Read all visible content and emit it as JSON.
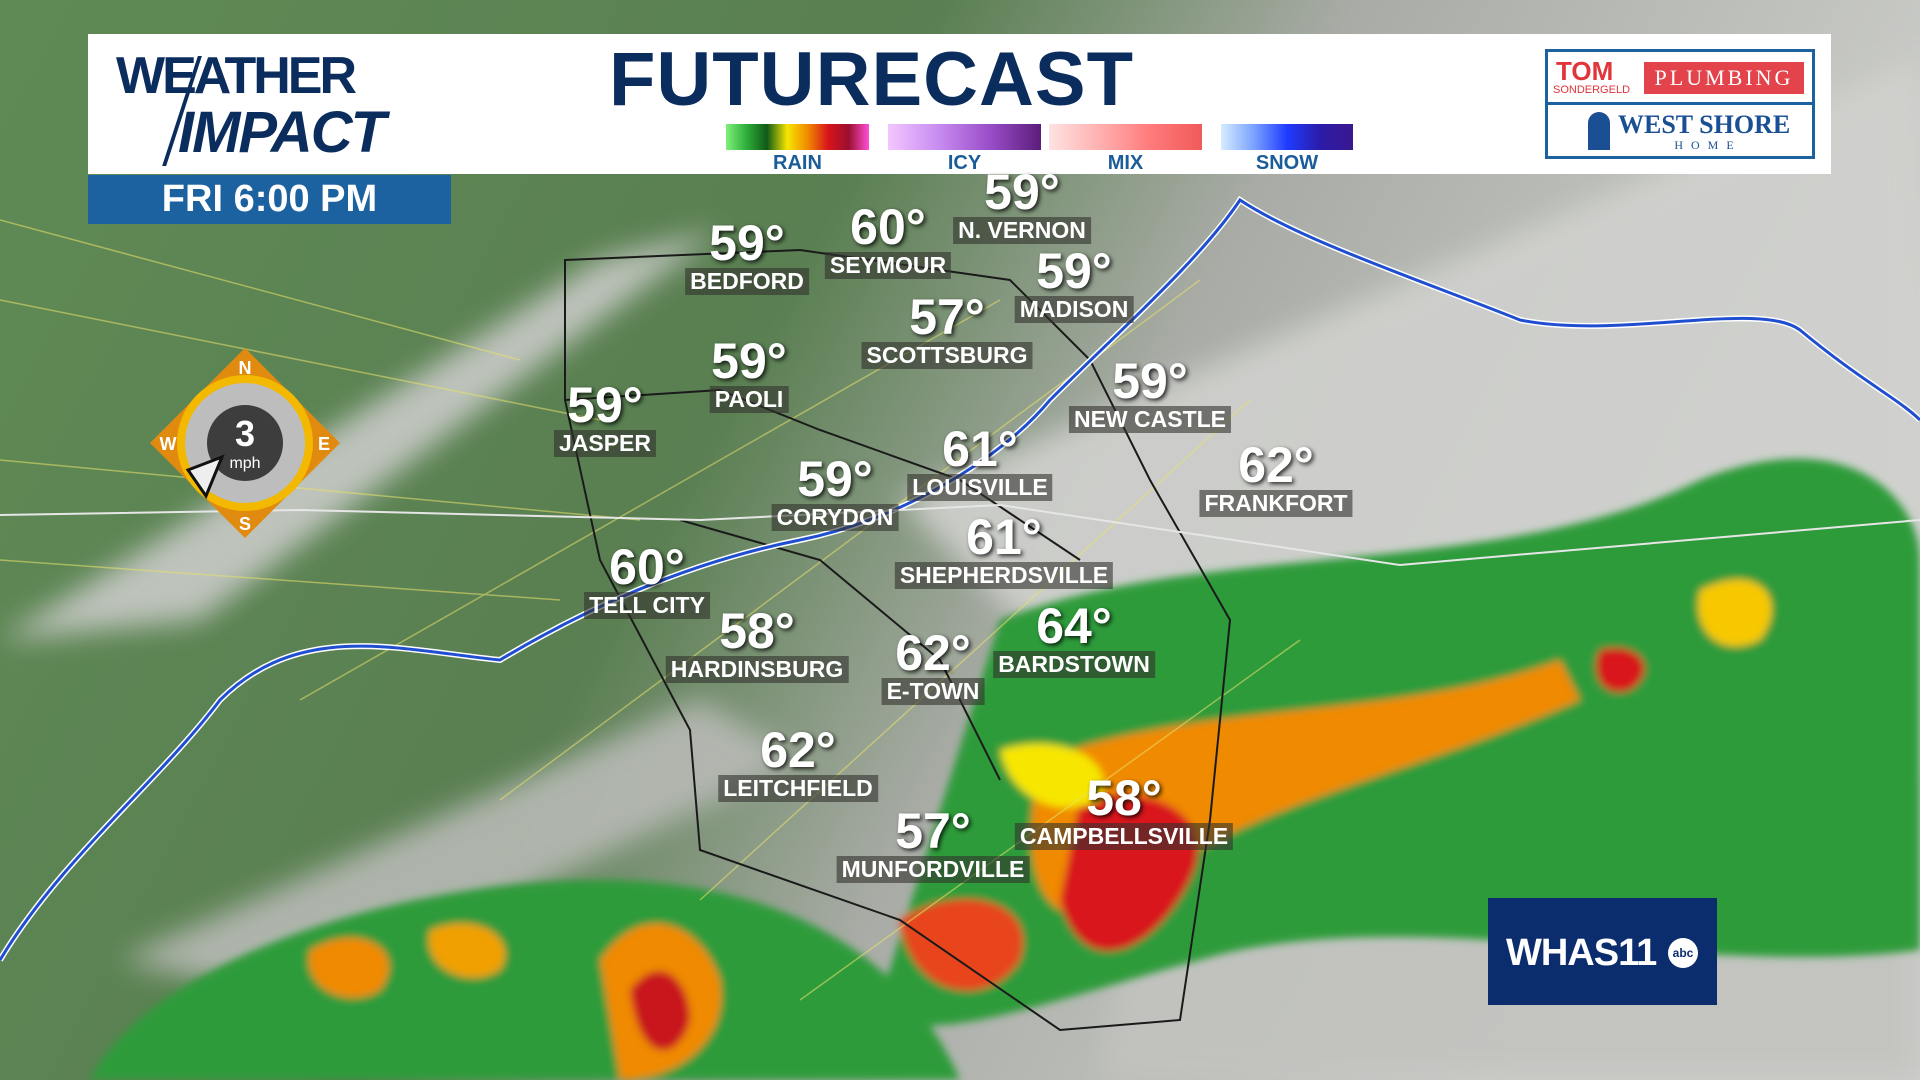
{
  "header": {
    "logo_line1": "WEATHER",
    "logo_line2": "IMPACT",
    "title": "FUTURECAST",
    "legend": [
      {
        "label": "RAIN",
        "colors": [
          "#7ef07a",
          "#2fae3a",
          "#0f5a17",
          "#f7e600",
          "#f08a00",
          "#d8141c",
          "#9b0f2e",
          "#ff4fd8"
        ]
      },
      {
        "label": "ICY",
        "colors": [
          "#f3c6ff",
          "#c78bf0",
          "#9a4dc8",
          "#5b1d7a"
        ]
      },
      {
        "label": "MIX",
        "colors": [
          "#ffe2e2",
          "#ffb0b0",
          "#ff7a7a",
          "#f05a5a"
        ]
      },
      {
        "label": "SNOW",
        "colors": [
          "#d6ecff",
          "#7aa2ff",
          "#1f3bff",
          "#2b1ca8",
          "#3a1790"
        ]
      }
    ]
  },
  "time": "FRI  6:00 PM",
  "sponsor": {
    "tom": "TOM",
    "sondergeld": "SONDERGELD",
    "plumbing": "PLUMBING",
    "westshore": "WEST SHORE",
    "home": "HOME"
  },
  "wind": {
    "speed": "3",
    "unit": "mph",
    "n": "N",
    "e": "E",
    "s": "S",
    "w": "W",
    "direction": "SW"
  },
  "station": {
    "call": "WHAS11",
    "network": "abc",
    "color": "#0b2d6e"
  },
  "cities": [
    {
      "name": "BEDFORD",
      "temp": "59°"
    },
    {
      "name": "SEYMOUR",
      "temp": "60°"
    },
    {
      "name": "N. VERNON",
      "temp": "59°"
    },
    {
      "name": "MADISON",
      "temp": "59°"
    },
    {
      "name": "SCOTTSBURG",
      "temp": "57°"
    },
    {
      "name": "PAOLI",
      "temp": "59°"
    },
    {
      "name": "JASPER",
      "temp": "59°"
    },
    {
      "name": "NEW CASTLE",
      "temp": "59°"
    },
    {
      "name": "LOUISVILLE",
      "temp": "61°"
    },
    {
      "name": "FRANKFORT",
      "temp": "62°"
    },
    {
      "name": "CORYDON",
      "temp": "59°"
    },
    {
      "name": "SHEPHERDSVILLE",
      "temp": "61°"
    },
    {
      "name": "TELL CITY",
      "temp": "60°"
    },
    {
      "name": "HARDINSBURG",
      "temp": "58°"
    },
    {
      "name": "E-TOWN",
      "temp": "62°"
    },
    {
      "name": "BARDSTOWN",
      "temp": "64°"
    },
    {
      "name": "LEITCHFIELD",
      "temp": "62°"
    },
    {
      "name": "MUNFORDVILLE",
      "temp": "57°"
    },
    {
      "name": "CAMPBELLSVILLE",
      "temp": "58°"
    }
  ]
}
